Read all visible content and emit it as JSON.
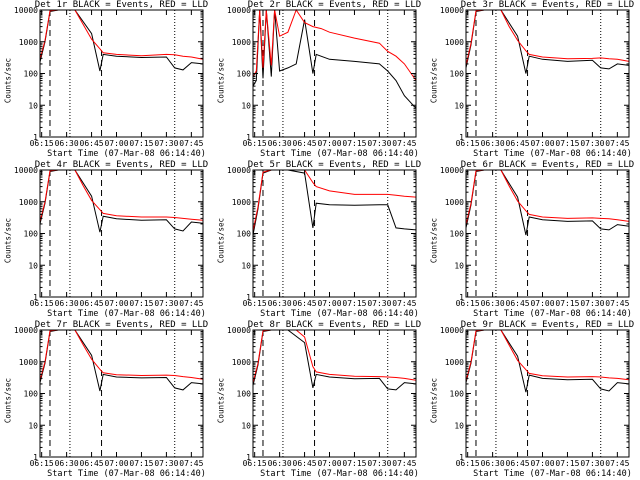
{
  "chart_data": {
    "type": "line",
    "ylabel": "Counts/sec",
    "xlabel": "Start Time (07-Mar-08 06:14:40)",
    "y_scale": "log",
    "ylim": [
      1,
      10000
    ],
    "y_ticks": [
      "1",
      "10",
      "100",
      "1000",
      "10000"
    ],
    "x_ticks": [
      "06:15",
      "06:30",
      "06:45",
      "07:00",
      "07:15",
      "07:30",
      "07:45"
    ],
    "legend": "BLACK = Events, RED = LLD",
    "series_colors": {
      "events": "#000000",
      "lld": "#ff0000"
    },
    "vertical_markers": {
      "dashed": [
        "06:20",
        "06:51"
      ],
      "dotted": [
        "06:32",
        "07:35"
      ]
    },
    "panels": [
      {
        "title": "Det 1r BLACK = Events, RED = LLD",
        "series": [
          {
            "name": "Events",
            "x": [
              "06:14",
              "06:17",
              "06:20",
              "06:25",
              "06:35",
              "06:45",
              "06:50",
              "06:52",
              "07:00",
              "07:15",
              "07:30",
              "07:35",
              "07:40",
              "07:45",
              "07:52"
            ],
            "y": [
              230,
              1000,
              9000,
              10000,
              10000,
              1800,
              120,
              400,
              350,
              320,
              330,
              150,
              130,
              220,
              200
            ]
          },
          {
            "name": "LLD",
            "x": [
              "06:14",
              "06:17",
              "06:20",
              "06:25",
              "06:35",
              "06:40",
              "06:45",
              "06:50",
              "06:52",
              "07:00",
              "07:15",
              "07:30",
              "07:35",
              "07:40",
              "07:45",
              "07:52"
            ],
            "y": [
              280,
              1100,
              9500,
              10000,
              10000,
              3500,
              1200,
              600,
              450,
              400,
              360,
              400,
              390,
              350,
              330,
              280
            ]
          }
        ]
      },
      {
        "title": "Det 2r BLACK = Events, RED = LLD",
        "series": [
          {
            "name": "Events",
            "x": [
              "06:14",
              "06:16",
              "06:18",
              "06:20",
              "06:22",
              "06:25",
              "06:27",
              "06:30",
              "06:35",
              "06:40",
              "06:45",
              "06:50",
              "06:52",
              "07:00",
              "07:15",
              "07:30",
              "07:35",
              "07:40",
              "07:45",
              "07:52"
            ],
            "y": [
              40,
              60,
              10000,
              70,
              10000,
              80,
              10000,
              120,
              150,
              200,
              5000,
              100,
              400,
              280,
              240,
              200,
              120,
              60,
              20,
              8
            ]
          },
          {
            "name": "LLD",
            "x": [
              "06:14",
              "06:16",
              "06:18",
              "06:20",
              "06:22",
              "06:25",
              "06:27",
              "06:30",
              "06:35",
              "06:40",
              "06:45",
              "06:50",
              "06:55",
              "07:00",
              "07:15",
              "07:30",
              "07:35",
              "07:40",
              "07:45",
              "07:52"
            ],
            "y": [
              80,
              120,
              10000,
              150,
              10000,
              180,
              10000,
              1500,
              2000,
              10000,
              4000,
              3000,
              2600,
              2000,
              1300,
              900,
              500,
              350,
              200,
              60
            ]
          }
        ]
      },
      {
        "title": "Det 3r BLACK = Events, RED = LLD",
        "series": [
          {
            "name": "Events",
            "x": [
              "06:14",
              "06:17",
              "06:20",
              "06:25",
              "06:35",
              "06:45",
              "06:50",
              "06:52",
              "07:00",
              "07:15",
              "07:30",
              "07:35",
              "07:40",
              "07:45",
              "07:52"
            ],
            "y": [
              150,
              800,
              9000,
              10000,
              10000,
              1500,
              100,
              350,
              280,
              240,
              260,
              150,
              140,
              200,
              180
            ]
          },
          {
            "name": "LLD",
            "x": [
              "06:14",
              "06:17",
              "06:20",
              "06:25",
              "06:35",
              "06:40",
              "06:45",
              "06:50",
              "06:52",
              "07:00",
              "07:15",
              "07:30",
              "07:35",
              "07:40",
              "07:45",
              "07:52"
            ],
            "y": [
              180,
              900,
              9500,
              10000,
              10000,
              3000,
              1100,
              520,
              400,
              330,
              290,
              300,
              310,
              290,
              280,
              240
            ]
          }
        ]
      },
      {
        "title": "Det 4r BLACK = Events, RED = LLD",
        "series": [
          {
            "name": "Events",
            "x": [
              "06:14",
              "06:17",
              "06:20",
              "06:25",
              "06:35",
              "06:45",
              "06:50",
              "06:52",
              "07:00",
              "07:15",
              "07:30",
              "07:35",
              "07:40",
              "07:45",
              "07:52"
            ],
            "y": [
              200,
              900,
              9000,
              10000,
              10000,
              1500,
              110,
              350,
              290,
              260,
              270,
              140,
              120,
              230,
              210
            ]
          },
          {
            "name": "LLD",
            "x": [
              "06:14",
              "06:17",
              "06:20",
              "06:25",
              "06:35",
              "06:40",
              "06:45",
              "06:50",
              "06:52",
              "07:00",
              "07:15",
              "07:30",
              "07:35",
              "07:40",
              "07:45",
              "07:52"
            ],
            "y": [
              240,
              1000,
              9500,
              10000,
              10000,
              3200,
              1100,
              560,
              430,
              360,
              330,
              330,
              320,
              300,
              280,
              260
            ]
          }
        ]
      },
      {
        "title": "Det 5r BLACK = Events, RED = LLD",
        "series": [
          {
            "name": "Events",
            "x": [
              "06:14",
              "06:17",
              "06:20",
              "06:25",
              "06:35",
              "06:45",
              "06:50",
              "06:52",
              "07:00",
              "07:15",
              "07:30",
              "07:35",
              "07:40",
              "07:45",
              "07:52"
            ],
            "y": [
              90,
              600,
              8000,
              10000,
              10000,
              8000,
              150,
              900,
              800,
              780,
              800,
              800,
              150,
              140,
              130
            ]
          },
          {
            "name": "LLD",
            "x": [
              "06:14",
              "06:17",
              "06:20",
              "06:25",
              "06:35",
              "06:40",
              "06:45",
              "06:50",
              "06:52",
              "07:00",
              "07:15",
              "07:30",
              "07:35",
              "07:40",
              "07:45",
              "07:52"
            ],
            "y": [
              120,
              700,
              8500,
              10000,
              10000,
              10000,
              10000,
              4000,
              3000,
              2200,
              1700,
              1700,
              1700,
              1600,
              1500,
              1400
            ]
          }
        ]
      },
      {
        "title": "Det 6r BLACK = Events, RED = LLD",
        "series": [
          {
            "name": "Events",
            "x": [
              "06:14",
              "06:17",
              "06:20",
              "06:25",
              "06:35",
              "06:45",
              "06:50",
              "06:52",
              "07:00",
              "07:15",
              "07:30",
              "07:35",
              "07:40",
              "07:45",
              "07:52"
            ],
            "y": [
              150,
              800,
              9000,
              10000,
              10000,
              1400,
              90,
              330,
              270,
              240,
              250,
              140,
              130,
              190,
              170
            ]
          },
          {
            "name": "LLD",
            "x": [
              "06:14",
              "06:17",
              "06:20",
              "06:25",
              "06:35",
              "06:40",
              "06:45",
              "06:50",
              "06:52",
              "07:00",
              "07:15",
              "07:30",
              "07:35",
              "07:40",
              "07:45",
              "07:52"
            ],
            "y": [
              190,
              900,
              9500,
              10000,
              10000,
              3100,
              1050,
              520,
              400,
              330,
              300,
              310,
              300,
              290,
              270,
              240
            ]
          }
        ]
      },
      {
        "title": "Det 7r BLACK = Events, RED = LLD",
        "series": [
          {
            "name": "Events",
            "x": [
              "06:14",
              "06:17",
              "06:20",
              "06:25",
              "06:35",
              "06:45",
              "06:50",
              "06:52",
              "07:00",
              "07:15",
              "07:30",
              "07:35",
              "07:40",
              "07:45",
              "07:52"
            ],
            "y": [
              220,
              900,
              9000,
              10000,
              10000,
              1600,
              120,
              400,
              330,
              310,
              320,
              150,
              130,
              220,
              200
            ]
          },
          {
            "name": "LLD",
            "x": [
              "06:14",
              "06:17",
              "06:20",
              "06:25",
              "06:35",
              "06:40",
              "06:45",
              "06:50",
              "06:52",
              "07:00",
              "07:15",
              "07:30",
              "07:35",
              "07:40",
              "07:45",
              "07:52"
            ],
            "y": [
              260,
              1000,
              9500,
              10000,
              10000,
              3400,
              1200,
              580,
              450,
              390,
              370,
              380,
              370,
              340,
              320,
              280
            ]
          }
        ]
      },
      {
        "title": "Det 8r BLACK = Events, RED = LLD",
        "series": [
          {
            "name": "Events",
            "x": [
              "06:14",
              "06:17",
              "06:20",
              "06:25",
              "06:35",
              "06:45",
              "06:50",
              "06:52",
              "07:00",
              "07:15",
              "07:30",
              "07:35",
              "07:40",
              "07:45",
              "07:52"
            ],
            "y": [
              180,
              800,
              9000,
              10000,
              10000,
              4000,
              150,
              400,
              330,
              290,
              300,
              140,
              130,
              220,
              200
            ]
          },
          {
            "name": "LLD",
            "x": [
              "06:14",
              "06:17",
              "06:20",
              "06:25",
              "06:35",
              "06:40",
              "06:45",
              "06:50",
              "06:52",
              "07:00",
              "07:15",
              "07:30",
              "07:35",
              "07:40",
              "07:45",
              "07:52"
            ],
            "y": [
              220,
              900,
              9500,
              10000,
              10000,
              10000,
              6000,
              700,
              480,
              400,
              350,
              340,
              330,
              320,
              300,
              260
            ]
          }
        ]
      },
      {
        "title": "Det 9r BLACK = Events, RED = LLD",
        "series": [
          {
            "name": "Events",
            "x": [
              "06:14",
              "06:17",
              "06:20",
              "06:25",
              "06:35",
              "06:45",
              "06:50",
              "06:52",
              "07:00",
              "07:15",
              "07:30",
              "07:35",
              "07:40",
              "07:45",
              "07:52"
            ],
            "y": [
              220,
              900,
              9000,
              10000,
              10000,
              1500,
              110,
              380,
              300,
              270,
              280,
              140,
              120,
              220,
              200
            ]
          },
          {
            "name": "LLD",
            "x": [
              "06:14",
              "06:17",
              "06:20",
              "06:25",
              "06:35",
              "06:40",
              "06:45",
              "06:50",
              "06:52",
              "07:00",
              "07:15",
              "07:30",
              "07:35",
              "07:40",
              "07:45",
              "07:52"
            ],
            "y": [
              250,
              1000,
              9500,
              10000,
              10000,
              3300,
              1100,
              560,
              430,
              360,
              330,
              340,
              330,
              310,
              300,
              270
            ]
          }
        ]
      }
    ]
  }
}
